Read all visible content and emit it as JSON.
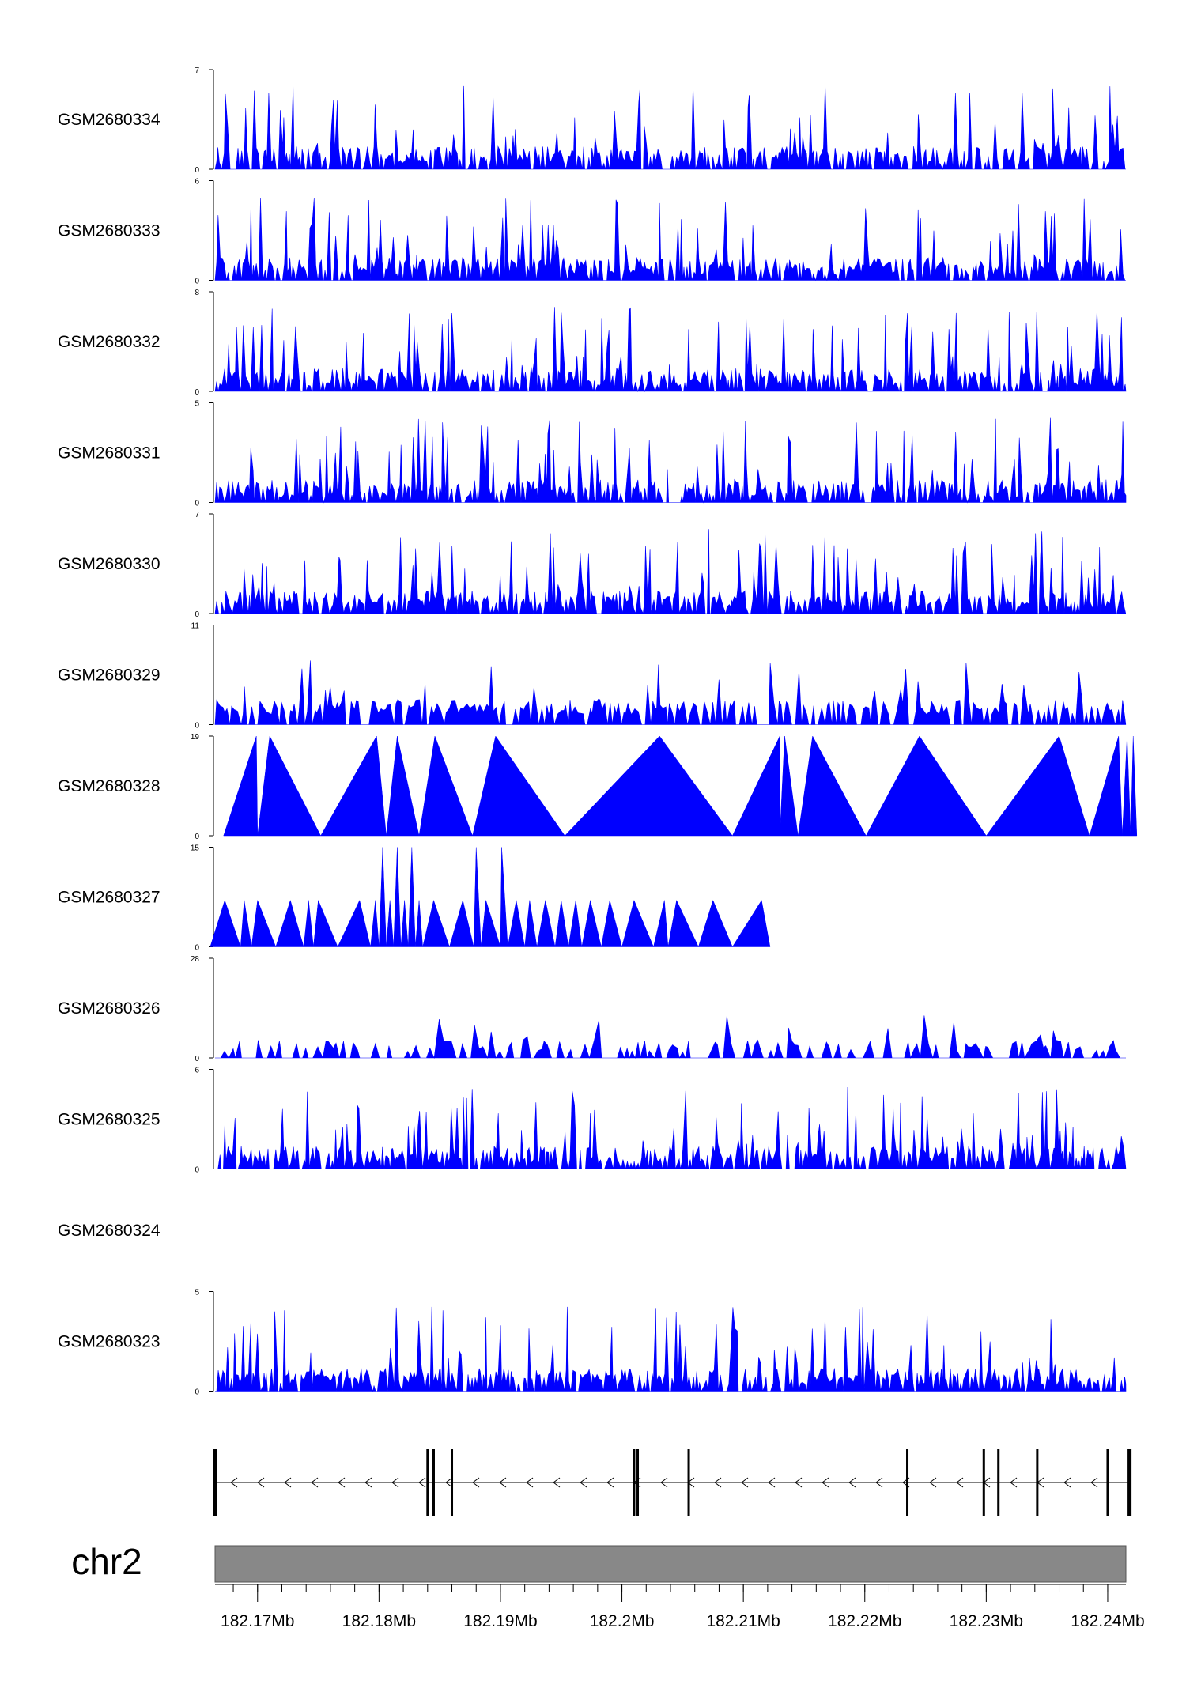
{
  "chart_data": {
    "type": "area",
    "colors": {
      "signal": "#0000FF",
      "ideogram": "#888888",
      "gene": "#000000"
    },
    "tracks": [
      {
        "name": "GSM2680334",
        "ymax": 7,
        "ymin": 0,
        "style": "dense",
        "seed": 34
      },
      {
        "name": "GSM2680333",
        "ymax": 6,
        "ymin": 0,
        "style": "dense",
        "seed": 33
      },
      {
        "name": "GSM2680332",
        "ymax": 8,
        "ymin": 0,
        "style": "dense",
        "seed": 32
      },
      {
        "name": "GSM2680331",
        "ymax": 5,
        "ymin": 0,
        "style": "dense",
        "seed": 31
      },
      {
        "name": "GSM2680330",
        "ymax": 7,
        "ymin": 0,
        "style": "dense",
        "seed": 30
      },
      {
        "name": "GSM2680329",
        "ymax": 11,
        "ymin": 0,
        "style": "medium",
        "seed": 29
      },
      {
        "name": "GSM2680328",
        "ymax": 19,
        "ymin": 0,
        "style": "sparse",
        "peaks": [
          [
            182.1672,
            182.1699,
            182.17,
            19
          ],
          [
            182.17,
            182.171,
            182.1752,
            19
          ],
          [
            182.1752,
            182.1798,
            182.1806,
            19
          ],
          [
            182.1806,
            182.1815,
            182.1833,
            19
          ],
          [
            182.1833,
            182.1846,
            182.1877,
            19
          ],
          [
            182.1877,
            182.1896,
            182.1953,
            19
          ],
          [
            182.1953,
            182.2031,
            182.2091,
            19
          ],
          [
            182.2091,
            182.213,
            182.213,
            19
          ],
          [
            182.213,
            182.2134,
            182.2145,
            19
          ],
          [
            182.2145,
            182.2157,
            182.2201,
            19
          ],
          [
            182.2201,
            182.2245,
            182.23,
            19
          ],
          [
            182.23,
            182.236,
            182.2385,
            19
          ],
          [
            182.2385,
            182.2409,
            182.2412,
            19
          ],
          [
            182.2412,
            182.2416,
            182.2419,
            19
          ],
          [
            182.2419,
            182.2421,
            182.2424,
            19
          ]
        ]
      },
      {
        "name": "GSM2680327",
        "ymax": 15,
        "ymin": 0,
        "style": "sparse",
        "peaks": [
          [
            182.1661,
            182.1673,
            182.1686,
            7
          ],
          [
            182.1686,
            182.1689,
            182.1695,
            7
          ],
          [
            182.1695,
            182.17,
            182.1715,
            7
          ],
          [
            182.1715,
            182.1727,
            182.1738,
            7
          ],
          [
            182.1738,
            182.1742,
            182.1746,
            7
          ],
          [
            182.1746,
            182.175,
            182.1766,
            7
          ],
          [
            182.1766,
            182.1784,
            182.1793,
            7
          ],
          [
            182.1793,
            182.1797,
            182.18,
            7
          ],
          [
            182.18,
            182.1803,
            182.1806,
            15
          ],
          [
            182.1806,
            182.1809,
            182.1812,
            7
          ],
          [
            182.1812,
            182.1815,
            182.1818,
            15
          ],
          [
            182.1818,
            182.1821,
            182.1824,
            7
          ],
          [
            182.1824,
            182.1827,
            182.183,
            15
          ],
          [
            182.183,
            182.1833,
            182.1836,
            7
          ],
          [
            182.1836,
            182.1845,
            182.1858,
            7
          ],
          [
            182.1858,
            182.1869,
            182.1878,
            7
          ],
          [
            182.1878,
            182.188,
            182.1884,
            15
          ],
          [
            182.1884,
            182.1888,
            182.19,
            7
          ],
          [
            182.19,
            182.1901,
            182.1906,
            15
          ],
          [
            182.1906,
            182.1913,
            182.192,
            7
          ],
          [
            182.192,
            182.1924,
            182.193,
            7
          ],
          [
            182.193,
            182.1937,
            182.1945,
            7
          ],
          [
            182.1945,
            182.195,
            182.1956,
            7
          ],
          [
            182.1956,
            182.1962,
            182.1967,
            7
          ],
          [
            182.1967,
            182.1974,
            182.1983,
            7
          ],
          [
            182.1983,
            182.199,
            182.2,
            7
          ],
          [
            182.2,
            182.201,
            182.2026,
            7
          ],
          [
            182.2026,
            182.2035,
            182.2038,
            7
          ],
          [
            182.2038,
            182.2045,
            182.2063,
            7
          ],
          [
            182.2063,
            182.2075,
            182.2091,
            7
          ],
          [
            182.2091,
            182.2115,
            182.2122,
            7
          ]
        ]
      },
      {
        "name": "GSM2680326",
        "ymax": 28,
        "ymin": 0,
        "style": "medium_low",
        "seed": 26
      },
      {
        "name": "GSM2680325",
        "ymax": 6,
        "ymin": 0,
        "style": "dense",
        "seed": 25
      },
      {
        "name": "GSM2680324",
        "ymax": null,
        "ymin": null,
        "style": "empty"
      },
      {
        "name": "GSM2680323",
        "ymax": 5,
        "ymin": 0,
        "style": "dense",
        "seed": 23
      }
    ],
    "gene": {
      "strand": "-",
      "exons": [
        182.1665,
        182.184,
        182.1845,
        182.186,
        182.201,
        182.2013,
        182.2055,
        182.2235,
        182.2298,
        182.231,
        182.2342,
        182.24,
        182.2418
      ]
    },
    "chromosome": "chr2",
    "xlim": [
      182.1665,
      182.2415
    ],
    "ticks": [
      {
        "pos": 182.17,
        "label": "182.17Mb"
      },
      {
        "pos": 182.18,
        "label": "182.18Mb"
      },
      {
        "pos": 182.19,
        "label": "182.19Mb"
      },
      {
        "pos": 182.2,
        "label": "182.2Mb"
      },
      {
        "pos": 182.21,
        "label": "182.21Mb"
      },
      {
        "pos": 182.22,
        "label": "182.22Mb"
      },
      {
        "pos": 182.23,
        "label": "182.23Mb"
      },
      {
        "pos": 182.24,
        "label": "182.24Mb"
      }
    ],
    "minor_tick_step": 0.002
  }
}
